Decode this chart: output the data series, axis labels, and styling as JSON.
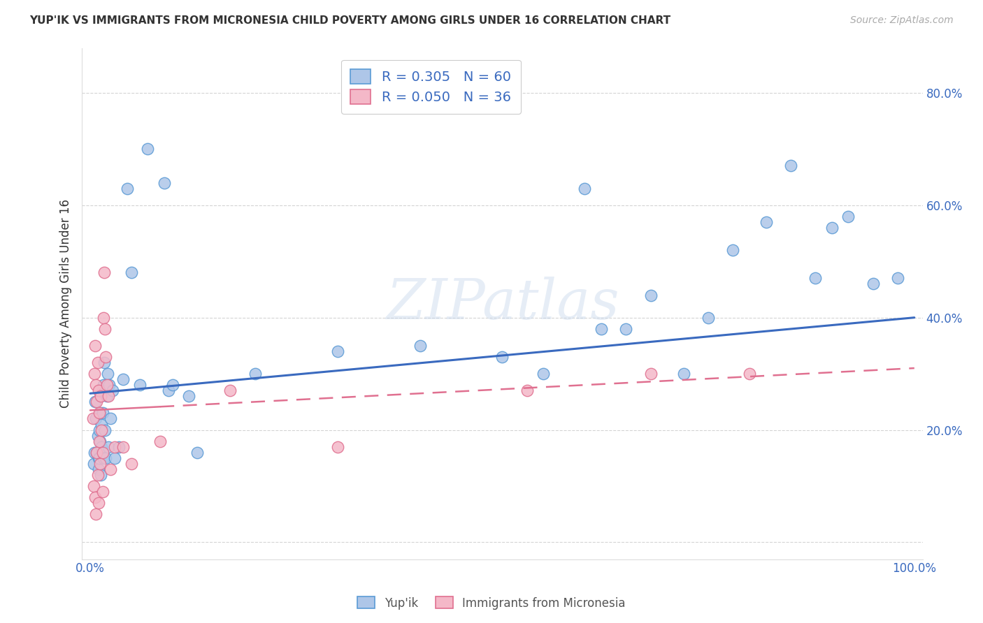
{
  "title": "YUP'IK VS IMMIGRANTS FROM MICRONESIA CHILD POVERTY AMONG GIRLS UNDER 16 CORRELATION CHART",
  "source": "Source: ZipAtlas.com",
  "ylabel": "Child Poverty Among Girls Under 16",
  "background_color": "#ffffff",
  "grid_color": "#d0d0d0",
  "yupik_color": "#aec6e8",
  "yupik_edge_color": "#5b9bd5",
  "micronesia_color": "#f4b8c8",
  "micronesia_edge_color": "#e07090",
  "yupik_line_color": "#3a6abf",
  "micronesia_line_color": "#e07090",
  "legend_yupik_R": "0.305",
  "legend_yupik_N": "60",
  "legend_micronesia_R": "0.050",
  "legend_micronesia_N": "36",
  "xlim": [
    -0.01,
    1.01
  ],
  "ylim": [
    -0.03,
    0.88
  ],
  "ytick_vals": [
    0.0,
    0.2,
    0.4,
    0.6,
    0.8
  ],
  "ytick_labels": [
    "",
    "20.0%",
    "40.0%",
    "60.0%",
    "80.0%"
  ],
  "xtick_vals": [
    0.0,
    0.2,
    0.4,
    0.6,
    0.8,
    1.0
  ],
  "xtick_labels": [
    "0.0%",
    "",
    "",
    "",
    "",
    "100.0%"
  ],
  "yupik_x": [
    0.004,
    0.005,
    0.006,
    0.007,
    0.008,
    0.009,
    0.01,
    0.01,
    0.011,
    0.011,
    0.012,
    0.012,
    0.013,
    0.013,
    0.014,
    0.014,
    0.015,
    0.015,
    0.016,
    0.016,
    0.017,
    0.018,
    0.019,
    0.02,
    0.021,
    0.022,
    0.023,
    0.025,
    0.027,
    0.03,
    0.035,
    0.04,
    0.045,
    0.05,
    0.06,
    0.07,
    0.09,
    0.095,
    0.1,
    0.12,
    0.13,
    0.2,
    0.3,
    0.4,
    0.5,
    0.55,
    0.6,
    0.62,
    0.65,
    0.68,
    0.72,
    0.75,
    0.78,
    0.82,
    0.85,
    0.88,
    0.9,
    0.92,
    0.95,
    0.98
  ],
  "yupik_y": [
    0.14,
    0.16,
    0.25,
    0.22,
    0.16,
    0.19,
    0.15,
    0.13,
    0.2,
    0.15,
    0.18,
    0.23,
    0.12,
    0.26,
    0.17,
    0.21,
    0.27,
    0.23,
    0.28,
    0.15,
    0.32,
    0.2,
    0.15,
    0.26,
    0.3,
    0.17,
    0.28,
    0.22,
    0.27,
    0.15,
    0.17,
    0.29,
    0.63,
    0.48,
    0.28,
    0.7,
    0.64,
    0.27,
    0.28,
    0.26,
    0.16,
    0.3,
    0.34,
    0.35,
    0.33,
    0.3,
    0.63,
    0.38,
    0.38,
    0.44,
    0.3,
    0.4,
    0.52,
    0.57,
    0.67,
    0.47,
    0.56,
    0.58,
    0.46,
    0.47
  ],
  "micronesia_x": [
    0.003,
    0.004,
    0.005,
    0.006,
    0.006,
    0.007,
    0.007,
    0.008,
    0.008,
    0.009,
    0.009,
    0.01,
    0.01,
    0.011,
    0.011,
    0.012,
    0.013,
    0.014,
    0.015,
    0.015,
    0.016,
    0.017,
    0.018,
    0.019,
    0.02,
    0.022,
    0.025,
    0.03,
    0.04,
    0.05,
    0.085,
    0.17,
    0.3,
    0.53,
    0.68,
    0.8
  ],
  "micronesia_y": [
    0.22,
    0.1,
    0.3,
    0.35,
    0.08,
    0.28,
    0.05,
    0.25,
    0.16,
    0.32,
    0.12,
    0.27,
    0.07,
    0.18,
    0.23,
    0.14,
    0.26,
    0.2,
    0.09,
    0.16,
    0.4,
    0.48,
    0.38,
    0.33,
    0.28,
    0.26,
    0.13,
    0.17,
    0.17,
    0.14,
    0.18,
    0.27,
    0.17,
    0.27,
    0.3,
    0.3
  ]
}
